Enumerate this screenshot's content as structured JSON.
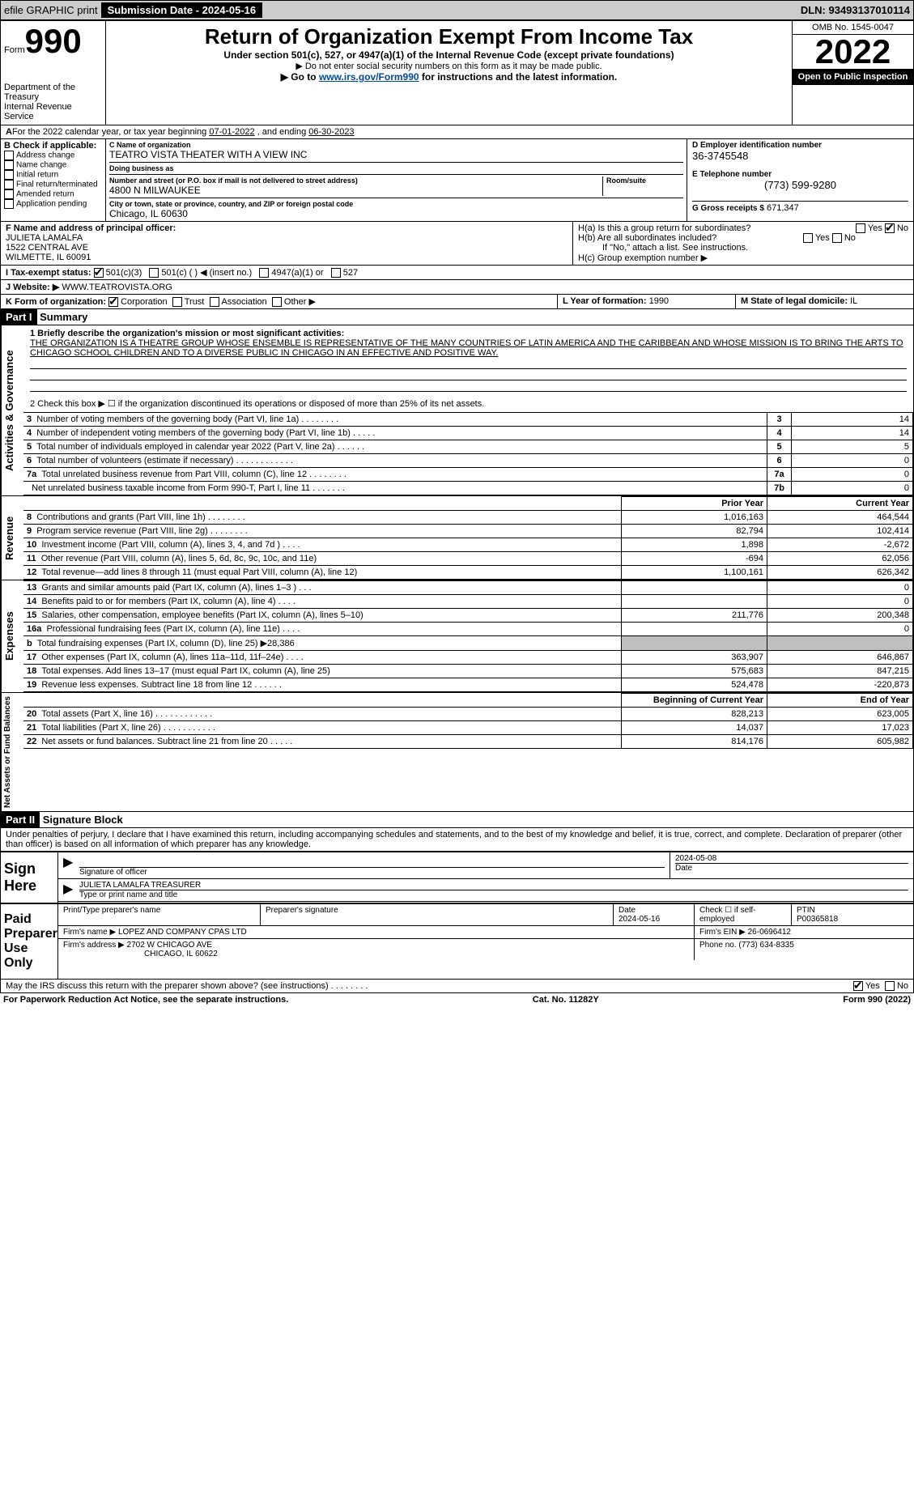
{
  "top_bar": {
    "efile_label": "efile GRAPHIC print",
    "sub_date_label": "Submission Date - 2024-05-16",
    "dln_label": "DLN: 93493137010114"
  },
  "form_header": {
    "form_prefix": "Form",
    "form_number": "990",
    "dept": "Department of the Treasury",
    "irs": "Internal Revenue Service",
    "title": "Return of Organization Exempt From Income Tax",
    "subtitle": "Under section 501(c), 527, or 4947(a)(1) of the Internal Revenue Code (except private foundations)",
    "ssn_note": "▶ Do not enter social security numbers on this form as it may be made public.",
    "goto_pre": "▶ Go to ",
    "goto_link": "www.irs.gov/Form990",
    "goto_post": " for instructions and the latest information.",
    "omb": "OMB No. 1545-0047",
    "year": "2022",
    "open": "Open to Public Inspection"
  },
  "line_a": {
    "pre": "For the 2022 calendar year, or tax year beginning ",
    "begin": "07-01-2022",
    "mid": " , and ending ",
    "end": "06-30-2023"
  },
  "box_b": {
    "title": "B Check if applicable:",
    "items": [
      "Address change",
      "Name change",
      "Initial return",
      "Final return/terminated",
      "Amended return",
      "Application pending"
    ]
  },
  "box_c": {
    "name_label": "C Name of organization",
    "name": "TEATRO VISTA THEATER WITH A VIEW INC",
    "dba_label": "Doing business as",
    "dba": "",
    "street_label": "Number and street (or P.O. box if mail is not delivered to street address)",
    "room_label": "Room/suite",
    "street": "4800 N MILWAUKEE",
    "city_label": "City or town, state or province, country, and ZIP or foreign postal code",
    "city": "Chicago, IL  60630"
  },
  "box_d": {
    "label": "D Employer identification number",
    "value": "36-3745548"
  },
  "box_e": {
    "label": "E Telephone number",
    "value": "(773) 599-9280"
  },
  "box_g": {
    "label": "G Gross receipts $",
    "value": "671,347"
  },
  "box_f": {
    "label": "F Name and address of principal officer:",
    "name": "JULIETA LAMALFA",
    "street": "1522 CENTRAL AVE",
    "city": "WILMETTE, IL  60091"
  },
  "box_h": {
    "a_label": "H(a)  Is this a group return for subordinates?",
    "b_label": "H(b)  Are all subordinates included?",
    "note": "If \"No,\" attach a list. See instructions.",
    "c_label": "H(c)  Group exemption number ▶",
    "yes": "Yes",
    "no": "No"
  },
  "box_i": {
    "label": "I  Tax-exempt status:",
    "opt1": "501(c)(3)",
    "opt2": "501(c) (   ) ◀ (insert no.)",
    "opt3": "4947(a)(1) or",
    "opt4": "527"
  },
  "box_j": {
    "label": "J  Website: ▶",
    "value": "WWW.TEATROVISTA.ORG"
  },
  "box_k": {
    "label": "K Form of organization:",
    "opts": [
      "Corporation",
      "Trust",
      "Association",
      "Other ▶"
    ]
  },
  "box_l": {
    "label": "L Year of formation:",
    "value": "1990"
  },
  "box_m": {
    "label": "M State of legal domicile:",
    "value": "IL"
  },
  "part1": {
    "label": "Part I",
    "title": "Summary"
  },
  "mission": {
    "line1": "1  Briefly describe the organization's mission or most significant activities:",
    "text": "THE ORGANIZATION IS A THEATRE GROUP WHOSE ENSEMBLE IS REPRESENTATIVE OF THE MANY COUNTRIES OF LATIN AMERICA AND THE CARIBBEAN AND WHOSE MISSION IS TO BRING THE ARTS TO CHICAGO SCHOOL CHILDREN AND TO A DIVERSE PUBLIC IN CHICAGO IN AN EFFECTIVE AND POSITIVE WAY."
  },
  "checkbox2": "2  Check this box ▶ ☐ if the organization discontinued its operations or disposed of more than 25% of its net assets.",
  "gov_lines": [
    {
      "no": "3",
      "desc": "Number of voting members of the governing body (Part VI, line 1a)  .    .    .    .    .    .    .    .",
      "box": "3",
      "val": "14"
    },
    {
      "no": "4",
      "desc": "Number of independent voting members of the governing body (Part VI, line 1b)  .    .    .    .    .",
      "box": "4",
      "val": "14"
    },
    {
      "no": "5",
      "desc": "Total number of individuals employed in calendar year 2022 (Part V, line 2a)  .    .    .    .    .    .",
      "box": "5",
      "val": "5"
    },
    {
      "no": "6",
      "desc": "Total number of volunteers (estimate if necessary)  .    .    .    .    .    .    .    .    .    .    .    .",
      "box": "6",
      "val": "0"
    },
    {
      "no": "7a",
      "desc": "Total unrelated business revenue from Part VIII, column (C), line 12   .    .    .    .    .    .    .    .",
      "box": "7a",
      "val": "0"
    },
    {
      "no": "",
      "desc": "Net unrelated business taxable income from Form 990-T, Part I, line 11   .    .    .    .    .    .    .",
      "box": "7b",
      "val": "0"
    }
  ],
  "col_head": {
    "prior": "Prior Year",
    "current": "Current Year"
  },
  "revenue": [
    {
      "no": "8",
      "desc": "Contributions and grants (Part VIII, line 1h)   .    .    .    .    .    .    .    .",
      "p": "1,016,163",
      "c": "464,544"
    },
    {
      "no": "9",
      "desc": "Program service revenue (Part VIII, line 2g)   .    .    .    .    .    .    .    .",
      "p": "82,794",
      "c": "102,414"
    },
    {
      "no": "10",
      "desc": "Investment income (Part VIII, column (A), lines 3, 4, and 7d )  .    .    .    .",
      "p": "1,898",
      "c": "-2,672"
    },
    {
      "no": "11",
      "desc": "Other revenue (Part VIII, column (A), lines 5, 6d, 8c, 9c, 10c, and 11e)",
      "p": "-694",
      "c": "62,056"
    },
    {
      "no": "12",
      "desc": "Total revenue—add lines 8 through 11 (must equal Part VIII, column (A), line 12)",
      "p": "1,100,161",
      "c": "626,342"
    }
  ],
  "expenses": [
    {
      "no": "13",
      "desc": "Grants and similar amounts paid (Part IX, column (A), lines 1–3 )  .    .    .",
      "p": "",
      "c": "0"
    },
    {
      "no": "14",
      "desc": "Benefits paid to or for members (Part IX, column (A), line 4)  .    .    .    .",
      "p": "",
      "c": "0"
    },
    {
      "no": "15",
      "desc": "Salaries, other compensation, employee benefits (Part IX, column (A), lines 5–10)",
      "p": "211,776",
      "c": "200,348"
    },
    {
      "no": "16a",
      "desc": "Professional fundraising fees (Part IX, column (A), line 11e)  .    .    .    .",
      "p": "",
      "c": "0"
    },
    {
      "no": "b",
      "desc": "Total fundraising expenses (Part IX, column (D), line 25) ▶28,386",
      "p": "GRAY",
      "c": "GRAY"
    },
    {
      "no": "17",
      "desc": "Other expenses (Part IX, column (A), lines 11a–11d, 11f–24e)  .    .    .    .",
      "p": "363,907",
      "c": "646,867"
    },
    {
      "no": "18",
      "desc": "Total expenses. Add lines 13–17 (must equal Part IX, column (A), line 25)",
      "p": "575,683",
      "c": "847,215"
    },
    {
      "no": "19",
      "desc": "Revenue less expenses. Subtract line 18 from line 12  .    .    .    .    .    .",
      "p": "524,478",
      "c": "-220,873"
    }
  ],
  "net_head": {
    "begin": "Beginning of Current Year",
    "end": "End of Year"
  },
  "netassets": [
    {
      "no": "20",
      "desc": "Total assets (Part X, line 16)  .    .    .    .    .    .    .    .    .    .    .    .",
      "p": "828,213",
      "c": "623,005"
    },
    {
      "no": "21",
      "desc": "Total liabilities (Part X, line 26)  .    .    .    .    .    .    .    .    .    .    .",
      "p": "14,037",
      "c": "17,023"
    },
    {
      "no": "22",
      "desc": "Net assets or fund balances. Subtract line 21 from line 20  .    .    .    .    .",
      "p": "814,176",
      "c": "605,982"
    }
  ],
  "part2": {
    "label": "Part II",
    "title": "Signature Block"
  },
  "penalty": "Under penalties of perjury, I declare that I have examined this return, including accompanying schedules and statements, and to the best of my knowledge and belief, it is true, correct, and complete. Declaration of preparer (other than officer) is based on all information of which preparer has any knowledge.",
  "sign": {
    "here": "Sign Here",
    "sig_label": "Signature of officer",
    "date_label": "Date",
    "date_val": "2024-05-08",
    "name_val": "JULIETA LAMALFA  TREASURER",
    "name_label": "Type or print name and title"
  },
  "paid": {
    "label": "Paid Preparer Use Only",
    "col_name": "Print/Type preparer's name",
    "col_sig": "Preparer's signature",
    "col_date": "Date",
    "date_val": "2024-05-16",
    "check_label": "Check ☐ if self-employed",
    "ptin_label": "PTIN",
    "ptin": "P00365818",
    "firm_name_label": "Firm's name    ▶",
    "firm_name": "LOPEZ AND COMPANY CPAS LTD",
    "firm_ein_label": "Firm's EIN ▶",
    "firm_ein": "26-0696412",
    "firm_addr_label": "Firm's address ▶",
    "firm_addr1": "2702 W CHICAGO AVE",
    "firm_addr2": "CHICAGO, IL  60622",
    "phone_label": "Phone no.",
    "phone": "(773) 634-8335"
  },
  "may_irs": "May the IRS discuss this return with the preparer shown above? (see instructions)  .    .    .    .    .    .    .    .",
  "footer": {
    "left": "For Paperwork Reduction Act Notice, see the separate instructions.",
    "mid": "Cat. No. 11282Y",
    "right": "Form 990 (2022)"
  },
  "vert": {
    "gov": "Activities & Governance",
    "rev": "Revenue",
    "exp": "Expenses",
    "net": "Net Assets or Fund Balances"
  }
}
